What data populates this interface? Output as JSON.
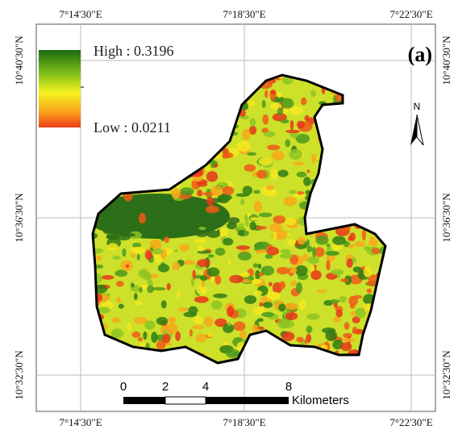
{
  "map": {
    "panel_label": "(a)",
    "legend": {
      "high": "High : 0.3196",
      "low": "Low : 0.0211"
    },
    "north": "N",
    "top_labels": [
      "7°14'30\"E",
      "7°18'30\"E",
      "7°22'30\"E"
    ],
    "bottom_labels": [
      "7°14'30\"E",
      "7°18'30\"E",
      "7°22'30\"E"
    ],
    "left_labels": [
      "10°40'30\"N",
      "10°36'30\"N",
      "10°32'30\"N"
    ],
    "right_labels": [
      "10°40'30\"N",
      "10°36'30\"N",
      "10°32'30\"N"
    ],
    "scale_bar": {
      "ticks": [
        "0",
        "2",
        "4",
        "8"
      ],
      "unit": "Kilometers"
    }
  }
}
